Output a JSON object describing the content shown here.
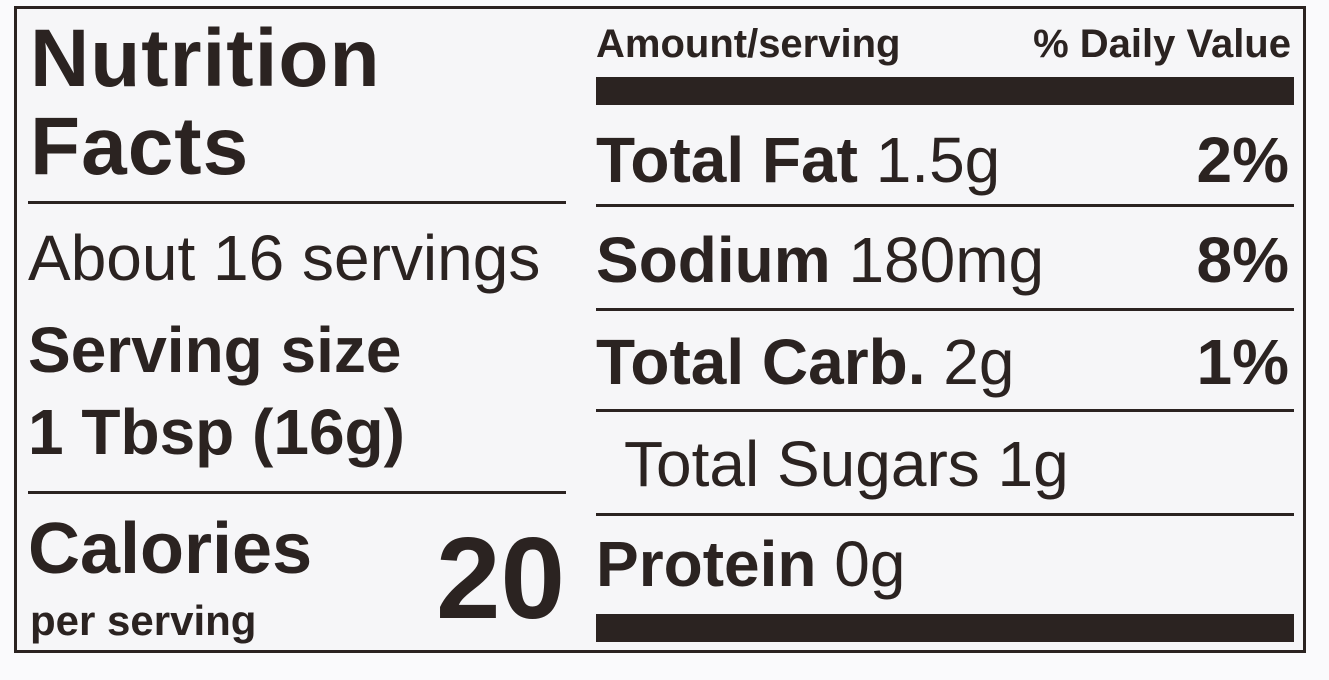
{
  "title_line1": "Nutrition",
  "title_line2": "Facts",
  "servings": "About 16 servings",
  "serving_size_label": "Serving size",
  "serving_size_value": "1 Tbsp (16g)",
  "calories_label": "Calories",
  "calories_sub": "per serving",
  "calories_value": "20",
  "header": {
    "amount": "Amount/serving",
    "dv": "% Daily Value"
  },
  "rows": [
    {
      "name": "Total Fat",
      "amount": "1.5g",
      "dv": "2%"
    },
    {
      "name": "Sodium",
      "amount": "180mg",
      "dv": "8%"
    },
    {
      "name": "Total Carb.",
      "amount": "2g",
      "dv": "1%"
    },
    {
      "name": "",
      "amount": "Total Sugars 1g",
      "dv": ""
    },
    {
      "name": "Protein",
      "amount": "0g",
      "dv": ""
    }
  ],
  "colors": {
    "ink": "#2b2321",
    "background": "#f6f6f8"
  }
}
